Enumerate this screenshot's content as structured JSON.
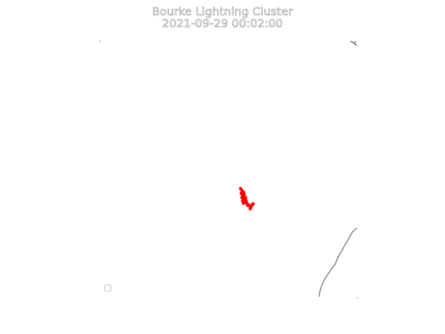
{
  "title": "Bourke Lightning Cluster",
  "timestamp": "2021-09-29 00:02:00",
  "colors": {
    "strike": "#ff0000",
    "boundary": "#000000",
    "background": "#ffffff"
  },
  "icons": {
    "legend": "empty-legend-box"
  }
}
